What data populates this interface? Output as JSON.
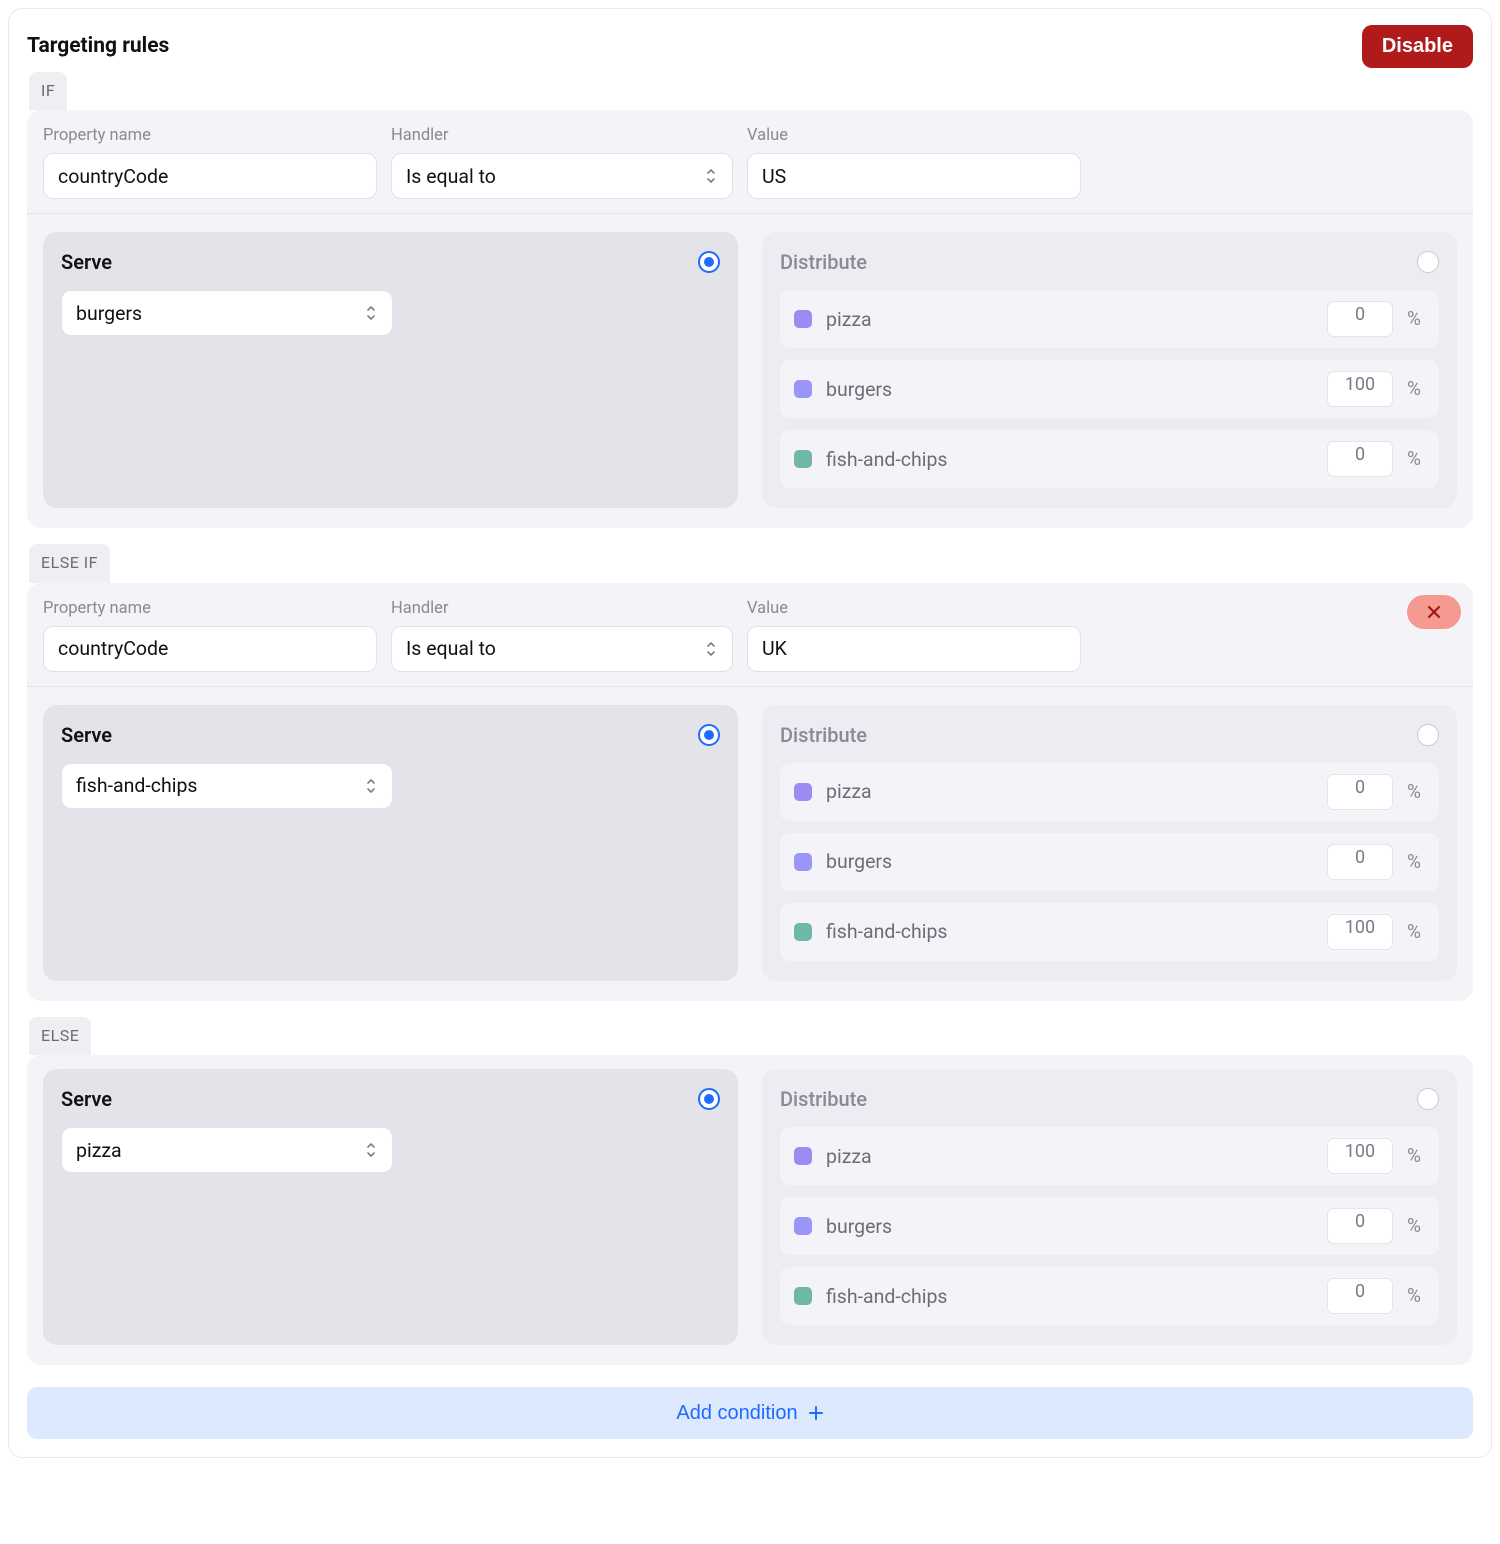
{
  "header": {
    "title": "Targeting rules",
    "disable_label": "Disable"
  },
  "labels": {
    "property_name": "Property name",
    "handler": "Handler",
    "value": "Value",
    "serve": "Serve",
    "distribute": "Distribute",
    "add_condition": "Add condition",
    "percent_sign": "%"
  },
  "colors": {
    "disable_button_bg": "#b11a1a",
    "disable_button_text": "#ffffff",
    "chip_bg": "#eeeef3",
    "chip_text": "#6b6b76",
    "rule_bg": "#f4f4f8",
    "serve_panel_bg": "#e3e3ea",
    "distribute_panel_bg": "#ececf2",
    "dist_row_bg": "#f3f3f8",
    "add_condition_bg": "#dce9ff",
    "add_condition_text": "#1f6bff",
    "radio_accent": "#1f6bff",
    "close_pill_bg": "#f59a90",
    "close_icon": "#9c1c12",
    "divider": "#e4e4ec",
    "muted_text": "#8a8a96"
  },
  "variants": [
    {
      "key": "pizza",
      "label": "pizza",
      "swatch": "#9a8cf0"
    },
    {
      "key": "burgers",
      "label": "burgers",
      "swatch": "#9a95f6"
    },
    {
      "key": "fish-and-chips",
      "label": "fish-and-chips",
      "swatch": "#6fb7a7"
    }
  ],
  "rules": [
    {
      "chip": "IF",
      "removable": false,
      "condition": {
        "property": "countryCode",
        "handler": "Is equal to",
        "value": "US"
      },
      "mode": "serve",
      "serve_value": "burgers",
      "distribution": {
        "pizza": 0,
        "burgers": 100,
        "fish-and-chips": 0
      }
    },
    {
      "chip": "ELSE IF",
      "removable": true,
      "condition": {
        "property": "countryCode",
        "handler": "Is equal to",
        "value": "UK"
      },
      "mode": "serve",
      "serve_value": "fish-and-chips",
      "distribution": {
        "pizza": 0,
        "burgers": 0,
        "fish-and-chips": 100
      }
    },
    {
      "chip": "ELSE",
      "removable": false,
      "condition": null,
      "mode": "serve",
      "serve_value": "pizza",
      "distribution": {
        "pizza": 100,
        "burgers": 0,
        "fish-and-chips": 0
      }
    }
  ]
}
